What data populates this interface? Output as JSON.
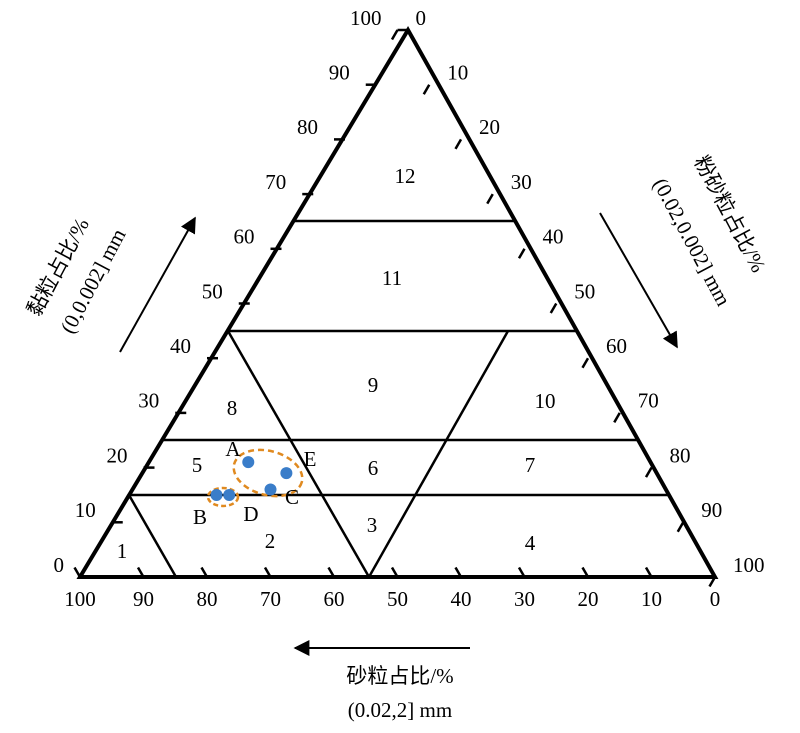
{
  "chart_data": {
    "type": "ternary",
    "clay_axis": {
      "title": "黏粒占比/%",
      "subtitle": "(0,0.002] mm"
    },
    "silt_axis": {
      "title": "粉砂粒占比/%",
      "subtitle": "(0.02,0.002] mm"
    },
    "sand_axis": {
      "title": "砂粒占比/%",
      "subtitle": "(0.02,2] mm"
    },
    "clay_ticks": [
      0,
      10,
      20,
      30,
      40,
      50,
      60,
      70,
      80,
      90,
      100
    ],
    "silt_ticks": [
      0,
      10,
      20,
      30,
      40,
      50,
      60,
      70,
      80,
      90,
      100
    ],
    "sand_ticks": [
      0,
      10,
      20,
      30,
      40,
      50,
      60,
      70,
      80,
      90,
      100
    ],
    "regions": [
      "1",
      "2",
      "3",
      "4",
      "5",
      "6",
      "7",
      "8",
      "9",
      "10",
      "11",
      "12"
    ],
    "point_color": "#3a7dc9",
    "label_color": "#e02020",
    "points": [
      {
        "name": "A",
        "clay": 21,
        "silt": 16,
        "sand": 63
      },
      {
        "name": "E",
        "clay": 19,
        "silt": 23,
        "sand": 58
      },
      {
        "name": "C",
        "clay": 16,
        "silt": 22,
        "sand": 62
      },
      {
        "name": "B",
        "clay": 15,
        "silt": 14,
        "sand": 71
      },
      {
        "name": "D",
        "clay": 15,
        "silt": 16,
        "sand": 69
      }
    ]
  }
}
